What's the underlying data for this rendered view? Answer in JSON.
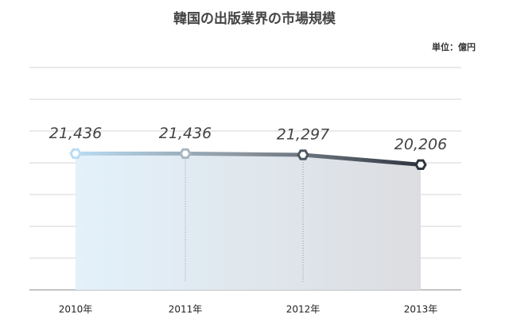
{
  "chart_data": {
    "type": "line",
    "title": "韓国の出版業界の市場規模",
    "unit_label": "単位：億円",
    "categories": [
      "2010年",
      "2011年",
      "2012年",
      "2013年"
    ],
    "values": [
      21436,
      21436,
      21297,
      20206
    ],
    "value_labels": [
      "21,436",
      "21,436",
      "21,297",
      "20,206"
    ],
    "color": "#2e3540",
    "ylim": [
      6300,
      31000
    ]
  }
}
